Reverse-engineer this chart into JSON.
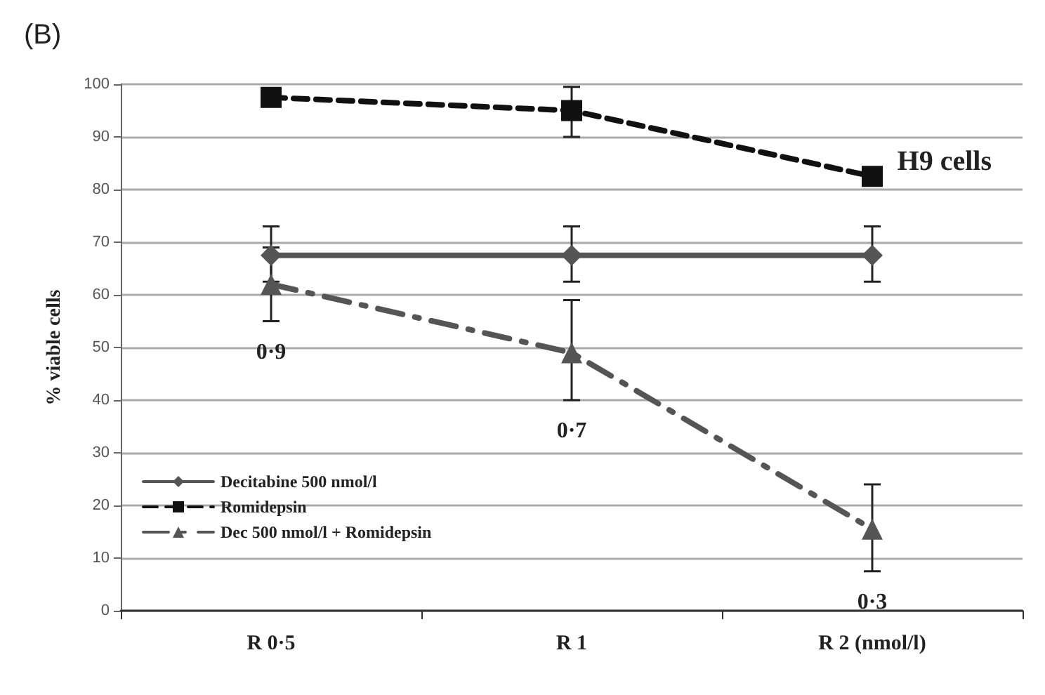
{
  "chart_data": {
    "type": "line",
    "title": "(B)",
    "ylabel": "% viable cells",
    "categories": [
      "R 0·5",
      "R 1",
      "R 2 (nmol/l)"
    ],
    "series": [
      {
        "name": "Decitabine 500 nmol/l",
        "color": "#555555",
        "values": [
          67.5,
          67.5,
          67.5
        ],
        "errors": [
          [
            62.5,
            73
          ],
          [
            62.5,
            73
          ],
          [
            62.5,
            73
          ]
        ],
        "marker": "diamond",
        "line_style": "solid"
      },
      {
        "name": "Romidepsin",
        "color": "#111111",
        "values": [
          97.5,
          95,
          82.5
        ],
        "errors": [
          null,
          [
            90,
            99.5
          ],
          null
        ],
        "marker": "square",
        "line_style": "dashed"
      },
      {
        "name": "Dec 500 nmol/l + Romidepsin",
        "color": "#555555",
        "values": [
          62,
          49,
          15.5
        ],
        "errors": [
          [
            55,
            69
          ],
          [
            40,
            59
          ],
          [
            7.5,
            24
          ]
        ],
        "marker": "triangle",
        "line_style": "dashdot"
      }
    ],
    "ylim": [
      0,
      100
    ],
    "yticks": [
      0,
      10,
      20,
      30,
      40,
      50,
      60,
      70,
      80,
      90,
      100
    ],
    "grid": "y",
    "legend": "bottom left",
    "annotations": [
      "H9 cells",
      "0·9",
      "0·7",
      "0·3"
    ]
  }
}
